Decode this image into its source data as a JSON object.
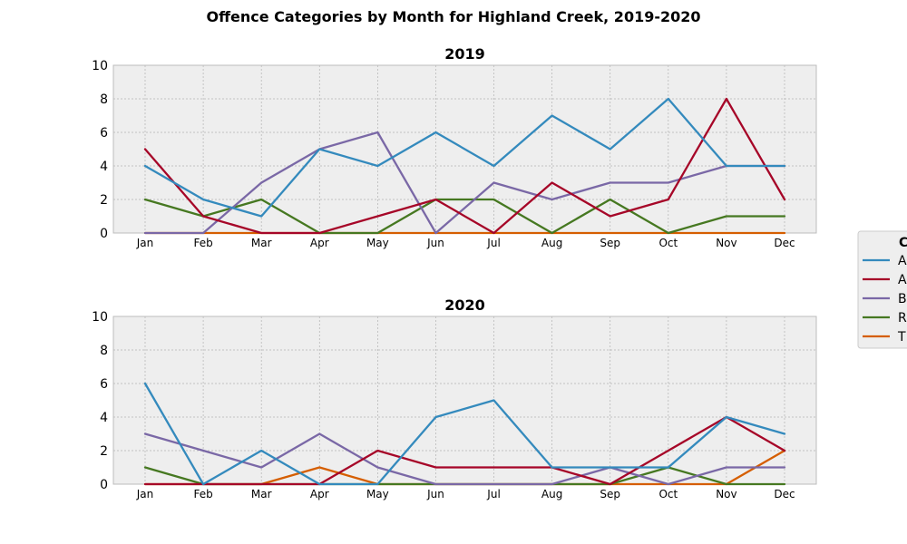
{
  "figure": {
    "title": "Offence Categories by Month for Highland Creek, 2019-2020"
  },
  "legend": {
    "title": "C",
    "placement": "right",
    "entries": [
      "As",
      "A",
      "B",
      "R",
      "T"
    ]
  },
  "chart_data": [
    {
      "type": "line",
      "title": "2019",
      "categories": [
        "Jan",
        "Feb",
        "Mar",
        "Apr",
        "May",
        "Jun",
        "Jul",
        "Aug",
        "Sep",
        "Oct",
        "Nov",
        "Dec"
      ],
      "ylim": [
        0,
        10
      ],
      "yticks": [
        0,
        2,
        4,
        6,
        8,
        10
      ],
      "grid": true,
      "series": [
        {
          "name": "As",
          "color": "#348ABD",
          "values": [
            4,
            2,
            1,
            5,
            4,
            6,
            4,
            7,
            5,
            8,
            4,
            4
          ]
        },
        {
          "name": "A",
          "color": "#A60628",
          "values": [
            5,
            1,
            0,
            0,
            1,
            2,
            0,
            3,
            1,
            2,
            8,
            2
          ]
        },
        {
          "name": "B",
          "color": "#7A68A6",
          "values": [
            0,
            0,
            3,
            5,
            6,
            0,
            3,
            2,
            3,
            3,
            4,
            4
          ]
        },
        {
          "name": "R",
          "color": "#467821",
          "values": [
            2,
            1,
            2,
            0,
            0,
            2,
            2,
            0,
            2,
            0,
            1,
            1
          ]
        },
        {
          "name": "T",
          "color": "#D55E00",
          "values": [
            0,
            0,
            0,
            0,
            0,
            0,
            0,
            0,
            0,
            0,
            0,
            0
          ]
        }
      ]
    },
    {
      "type": "line",
      "title": "2020",
      "categories": [
        "Jan",
        "Feb",
        "Mar",
        "Apr",
        "May",
        "Jun",
        "Jul",
        "Aug",
        "Sep",
        "Oct",
        "Nov",
        "Dec"
      ],
      "ylim": [
        0,
        10
      ],
      "yticks": [
        0,
        2,
        4,
        6,
        8,
        10
      ],
      "grid": true,
      "series": [
        {
          "name": "As",
          "color": "#348ABD",
          "values": [
            6,
            0,
            2,
            0,
            0,
            4,
            5,
            1,
            1,
            1,
            4,
            3
          ]
        },
        {
          "name": "A",
          "color": "#A60628",
          "values": [
            0,
            0,
            0,
            0,
            2,
            1,
            1,
            1,
            0,
            2,
            4,
            2
          ]
        },
        {
          "name": "B",
          "color": "#7A68A6",
          "values": [
            3,
            2,
            1,
            3,
            1,
            0,
            0,
            0,
            1,
            0,
            1,
            1
          ]
        },
        {
          "name": "R",
          "color": "#467821",
          "values": [
            1,
            0,
            0,
            0,
            0,
            0,
            0,
            0,
            0,
            1,
            0,
            0
          ]
        },
        {
          "name": "T",
          "color": "#D55E00",
          "values": [
            0,
            0,
            0,
            1,
            0,
            0,
            0,
            0,
            0,
            0,
            0,
            2
          ]
        }
      ]
    }
  ]
}
